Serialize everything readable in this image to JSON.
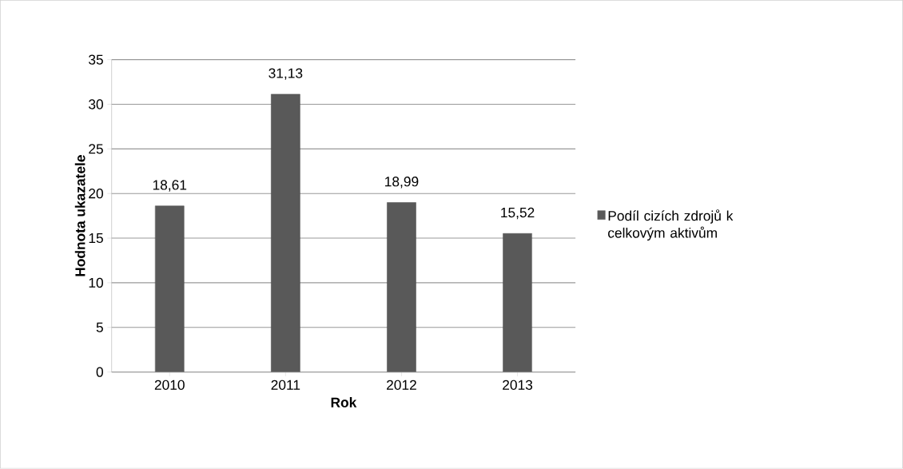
{
  "chart_data": {
    "type": "bar",
    "xlabel": "Rok",
    "ylabel": "Hodnota ukazatele",
    "categories": [
      "2010",
      "2011",
      "2012",
      "2013"
    ],
    "series": [
      {
        "name": "Podíl cizích zdrojů k celkovým aktivům",
        "color": "#595959",
        "values": [
          18.61,
          31.13,
          18.99,
          15.52
        ],
        "value_labels": [
          "18,61",
          "31,13",
          "18,99",
          "15,52"
        ]
      }
    ],
    "ylim": [
      0,
      35
    ],
    "yticks": [
      0,
      5,
      10,
      15,
      20,
      25,
      30,
      35
    ],
    "grid": "y",
    "legend": "right"
  }
}
